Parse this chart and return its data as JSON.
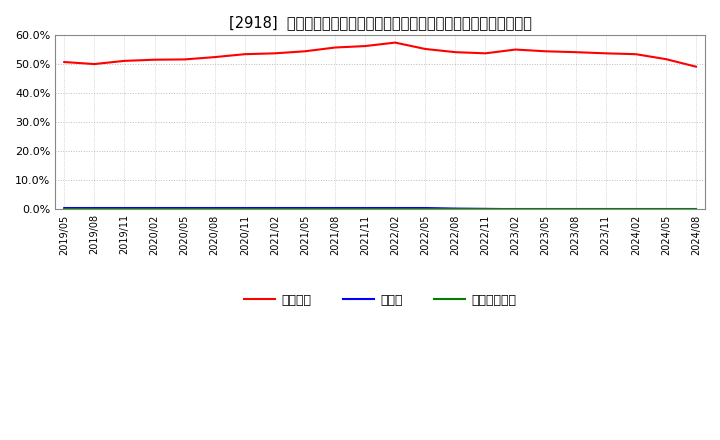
{
  "title": "[2918]  自己資本、のれん、繰延税金資産の総資産に対する比率の推移",
  "x_labels": [
    "2019/05",
    "2019/08",
    "2019/11",
    "2020/02",
    "2020/05",
    "2020/08",
    "2020/11",
    "2021/02",
    "2021/05",
    "2021/08",
    "2021/11",
    "2022/02",
    "2022/05",
    "2022/08",
    "2022/11",
    "2023/02",
    "2023/05",
    "2023/08",
    "2023/11",
    "2024/02",
    "2024/05",
    "2024/08"
  ],
  "equity_ratio": [
    50.8,
    50.1,
    51.2,
    51.6,
    51.7,
    52.5,
    53.5,
    53.8,
    54.5,
    55.8,
    56.3,
    57.5,
    55.3,
    54.2,
    53.8,
    55.1,
    54.5,
    54.2,
    53.8,
    53.5,
    51.8,
    49.2
  ],
  "goodwill_ratio": [
    0.5,
    0.5,
    0.5,
    0.5,
    0.5,
    0.5,
    0.5,
    0.5,
    0.5,
    0.5,
    0.5,
    0.5,
    0.5,
    0.3,
    0.2,
    0.1,
    0.1,
    0.1,
    0.1,
    0.1,
    0.1,
    0.1
  ],
  "deferred_tax_ratio": [
    0.1,
    0.1,
    0.1,
    0.1,
    0.1,
    0.1,
    0.1,
    0.1,
    0.1,
    0.1,
    0.1,
    0.1,
    0.1,
    0.1,
    0.1,
    0.1,
    0.1,
    0.1,
    0.1,
    0.1,
    0.1,
    0.1
  ],
  "equity_color": "#ff0000",
  "goodwill_color": "#0000ff",
  "deferred_tax_color": "#008000",
  "bg_color": "#ffffff",
  "plot_bg_color": "#ffffff",
  "grid_color": "#bbbbbb",
  "ylim": [
    0,
    60
  ],
  "yticks": [
    0,
    10,
    20,
    30,
    40,
    50,
    60
  ],
  "legend_labels": [
    "自己資本",
    "のれん",
    "繰延税金資産"
  ]
}
